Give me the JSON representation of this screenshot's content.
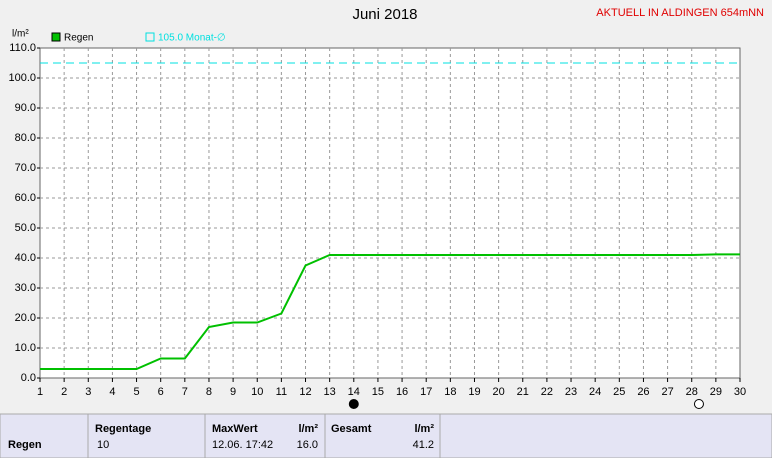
{
  "chart_data": {
    "type": "line",
    "title": "Juni 2018",
    "station": "AKTUELL IN ALDINGEN 654mNN",
    "y_label": "l/m²",
    "x": [
      1,
      2,
      3,
      4,
      5,
      6,
      7,
      8,
      9,
      10,
      11,
      12,
      13,
      14,
      15,
      16,
      17,
      18,
      19,
      20,
      21,
      22,
      23,
      24,
      25,
      26,
      27,
      28,
      29,
      30
    ],
    "series": [
      {
        "name": "Regen",
        "color": "#00c000",
        "values": [
          3,
          3,
          3,
          3,
          3,
          6.5,
          6.5,
          17,
          18.5,
          18.5,
          21.5,
          37.5,
          41,
          41,
          41,
          41,
          41,
          41,
          41,
          41,
          41,
          41,
          41,
          41,
          41,
          41,
          41,
          41,
          41.2,
          41.2
        ]
      }
    ],
    "reference": {
      "name": "105.0 Monat-∅",
      "value": 105,
      "color": "#00e0e0"
    },
    "xlim": [
      1,
      30
    ],
    "xticks": [
      1,
      2,
      3,
      4,
      5,
      6,
      7,
      8,
      9,
      10,
      11,
      12,
      13,
      14,
      15,
      16,
      17,
      18,
      19,
      20,
      21,
      22,
      23,
      24,
      25,
      26,
      27,
      28,
      29,
      30
    ],
    "ylim": [
      0,
      110
    ],
    "yticks": [
      {
        "value": 0,
        "label": "0.0"
      },
      {
        "value": 10,
        "label": "10.0"
      },
      {
        "value": 20,
        "label": "20.0"
      },
      {
        "value": 30,
        "label": "30.0"
      },
      {
        "value": 40,
        "label": "40.0"
      },
      {
        "value": 50,
        "label": "50.0"
      },
      {
        "value": 60,
        "label": "60.0"
      },
      {
        "value": 70,
        "label": "70.0"
      },
      {
        "value": 80,
        "label": "80.0"
      },
      {
        "value": 90,
        "label": "90.0"
      },
      {
        "value": 100,
        "label": "100.0"
      },
      {
        "value": 110,
        "label": "110.0"
      }
    ],
    "grid": true,
    "markers": [
      {
        "x": 14,
        "filled": true
      },
      {
        "x": 28.3,
        "filled": false
      }
    ]
  },
  "table": {
    "row_label": "Regen",
    "regentage": {
      "header": "Regentage",
      "value": "10"
    },
    "maxwert": {
      "header": "MaxWert",
      "unit": "l/m²",
      "time": "12.06. 17:42",
      "value": "16.0"
    },
    "gesamt": {
      "header": "Gesamt",
      "unit": "l/m²",
      "value": "41.2"
    }
  }
}
